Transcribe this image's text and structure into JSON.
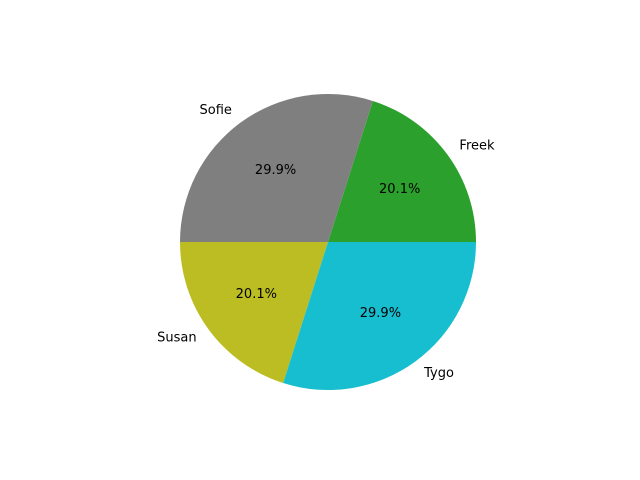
{
  "chart_data": {
    "type": "pie",
    "labels": [
      "Freek",
      "Sofie",
      "Susan",
      "Tygo"
    ],
    "values": [
      20.1,
      29.9,
      20.1,
      29.9
    ],
    "percent_labels": [
      "20.1%",
      "29.9%",
      "20.1%",
      "29.9%"
    ],
    "colors": [
      "#2ca02c",
      "#7f7f7f",
      "#bcbd22",
      "#17becf"
    ],
    "start_angle_deg": 0,
    "direction": "counterclockwise",
    "title": "",
    "legend": "none"
  }
}
